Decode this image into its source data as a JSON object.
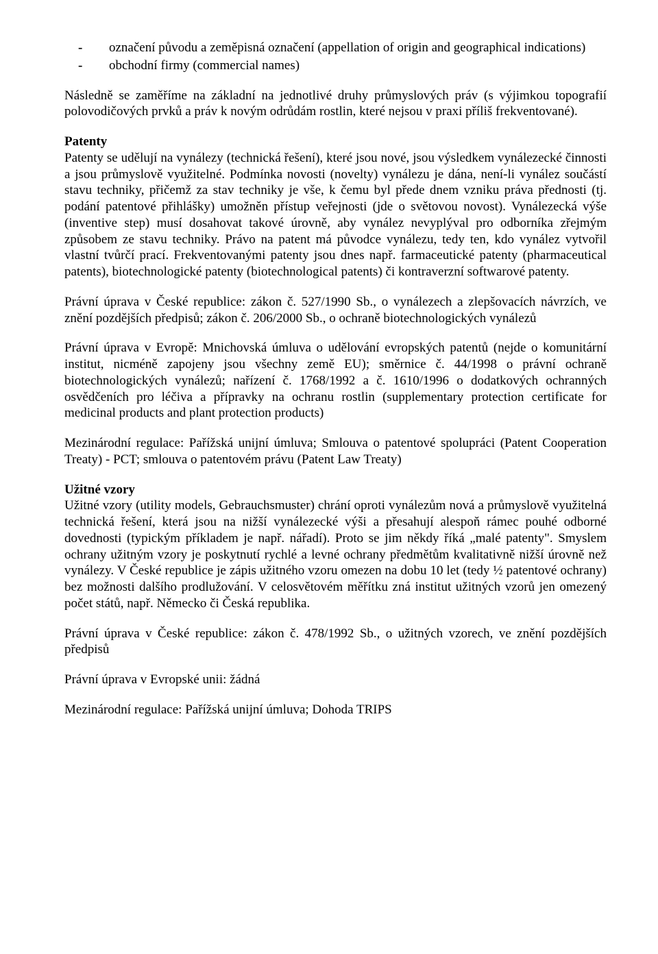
{
  "bullets": {
    "item1": "označení původu a zeměpisná označení (appellation of origin and geographical indications)",
    "item2": "obchodní firmy (commercial names)"
  },
  "intro": "Následně se zaměříme na základní na jednotlivé druhy průmyslových práv (s výjimkou topografií polovodičových prvků a práv k novým odrůdám rostlin, které nejsou v praxi příliš frekventované).",
  "patenty": {
    "title": "Patenty",
    "body": "Patenty se udělují na vynálezy (technická řešení), které jsou nové, jsou výsledkem vynálezecké činnosti a jsou průmyslově využitelné. Podmínka novosti (novelty) vynálezu je dána, není-li vynález součástí stavu techniky, přičemž za stav techniky je vše, k čemu byl přede dnem vzniku práva přednosti (tj. podání patentové přihlášky) umožněn přístup veřejnosti (jde o světovou novost). Vynálezecká výše (inventive step) musí dosahovat takové úrovně, aby vynález nevyplýval pro odborníka zřejmým způsobem ze stavu techniky. Právo na patent má původce vynálezu, tedy ten, kdo vynález vytvořil vlastní tvůrčí prací. Frekventovanými patenty jsou dnes např. farmaceutické patenty (pharmaceutical patents), biotechnologické patenty (biotechnological patents) či kontraverzní softwarové patenty.",
    "cr": "Právní úprava v České republice: zákon č. 527/1990 Sb., o vynálezech a zlepšovacích návrzích, ve znění pozdějších předpisů; zákon č. 206/2000 Sb., o ochraně biotechnologických vynálezů",
    "eu": "Právní úprava v Evropě: Mnichovská úmluva o udělování evropských patentů (nejde o komunitární institut, nicméně zapojeny jsou všechny země EU); směrnice č. 44/1998 o právní ochraně biotechnologických vynálezů; nařízení č. 1768/1992 a č. 1610/1996 o dodatkových ochranných osvědčeních pro léčiva a přípravky na ochranu rostlin (supplementary protection certificate for medicinal products and plant protection products)",
    "intl": "Mezinárodní regulace: Pařížská unijní úmluva; Smlouva o patentové spolupráci (Patent Cooperation Treaty) - PCT; smlouva o patentovém právu (Patent Law Treaty)"
  },
  "uzitne": {
    "title": "Užitné vzory",
    "body": "Užitné vzory (utility models, Gebrauchsmuster) chrání oproti vynálezům nová a průmyslově využitelná technická řešení, která jsou na nižší vynálezecké výši a přesahují alespoň rámec pouhé odborné dovednosti (typickým příkladem je např. nářadí). Proto se jim někdy říká „malé patenty\". Smyslem ochrany užitným vzory je poskytnutí rychlé a levné ochrany předmětům kvalitativně nižší úrovně než vynálezy. V České republice je zápis užitného vzoru omezen na dobu 10 let (tedy ½ patentové ochrany) bez možnosti dalšího prodlužování. V celosvětovém měřítku zná institut užitných vzorů jen omezený počet států, např. Německo či Česká republika.",
    "cr": "Právní úprava v České republice: zákon č. 478/1992 Sb., o užitných vzorech, ve znění pozdějších předpisů",
    "eu": "Právní úprava v Evropské unii: žádná",
    "intl": "Mezinárodní regulace: Pařížská unijní úmluva; Dohoda TRIPS"
  }
}
